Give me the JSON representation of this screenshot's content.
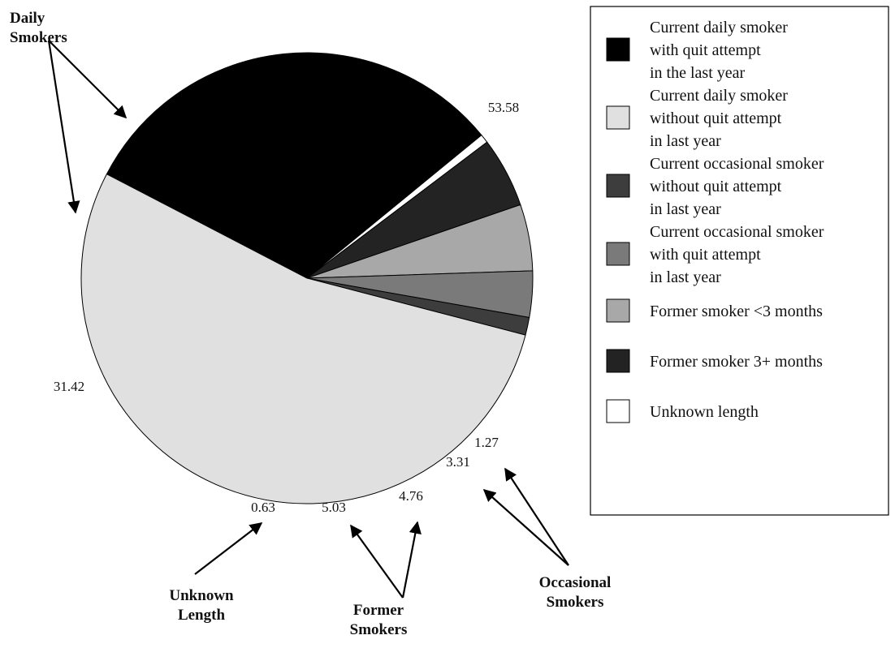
{
  "chart_data": {
    "type": "pie",
    "title": "",
    "categories": [
      "Current daily smoker with quit attempt in the last year",
      "Current daily smoker without quit attempt in last year",
      "Current occasional smoker without quit attempt in last year",
      "Current occasional smoker with quit attempt in last year",
      "Former smoker <3 months",
      "Former smoker 3+ months",
      "Unknown length"
    ],
    "values": [
      31.42,
      53.58,
      1.27,
      3.31,
      4.76,
      5.03,
      0.63
    ],
    "value_labels": [
      "31.42",
      "53.58",
      "1.27",
      "3.31",
      "4.76",
      "5.03",
      "0.63"
    ],
    "colors": [
      "#000000",
      "#e0e0e0",
      "#3d3d3d",
      "#7a7a7a",
      "#a8a8a8",
      "#232323",
      "#ffffff"
    ],
    "legend": {
      "placement": "right",
      "entries": [
        {
          "lines": [
            "Current daily smoker",
            "with quit attempt",
            "in the last year"
          ],
          "color": "#000000"
        },
        {
          "lines": [
            "Current daily smoker",
            "without quit attempt",
            "in last year"
          ],
          "color": "#e0e0e0"
        },
        {
          "lines": [
            "Current occasional smoker",
            "without quit attempt",
            "in last year"
          ],
          "color": "#3d3d3d"
        },
        {
          "lines": [
            "Current occasional smoker",
            "with quit attempt",
            "in last year"
          ],
          "color": "#7a7a7a"
        },
        {
          "lines": [
            "Former smoker <3 months"
          ],
          "color": "#a8a8a8"
        },
        {
          "lines": [
            "Former smoker 3+ months"
          ],
          "color": "#232323"
        },
        {
          "lines": [
            "Unknown length"
          ],
          "color": "#ffffff"
        }
      ]
    },
    "annotations": [
      {
        "lines": [
          "Daily",
          "Smokers"
        ],
        "refers_to": [
          "Current daily smoker without quit attempt in last year",
          "Current daily smoker with quit attempt in the last year"
        ]
      },
      {
        "lines": [
          "Unknown",
          "Length"
        ],
        "refers_to": [
          "Unknown length"
        ]
      },
      {
        "lines": [
          "Former",
          "Smokers"
        ],
        "refers_to": [
          "Former smoker 3+ months",
          "Former smoker <3 months"
        ]
      },
      {
        "lines": [
          "Occasional",
          "Smokers"
        ],
        "refers_to": [
          "Current occasional smoker with quit attempt in last year",
          "Current occasional smoker without quit attempt in last year"
        ]
      }
    ]
  }
}
